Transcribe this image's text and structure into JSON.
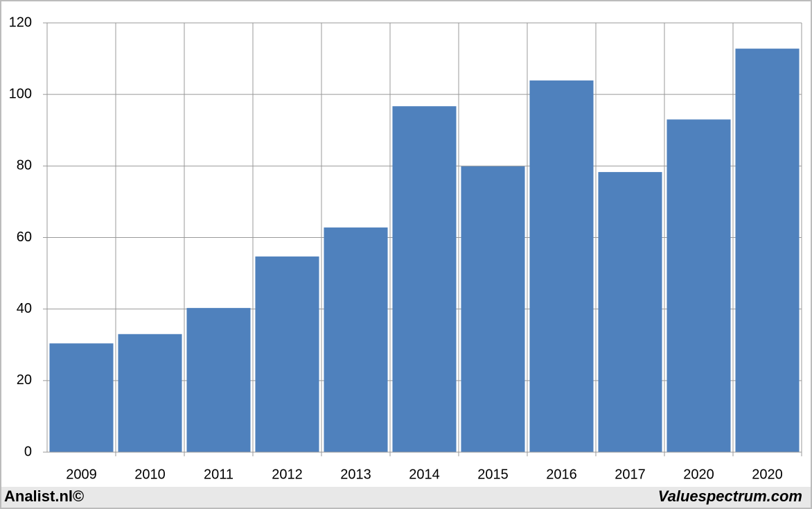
{
  "chart_data": {
    "type": "bar",
    "categories": [
      "2009",
      "2010",
      "2011",
      "2012",
      "2013",
      "2014",
      "2015",
      "2016",
      "2017",
      "2020",
      "2020"
    ],
    "values": [
      30.4,
      33,
      40.3,
      54.7,
      62.8,
      96.7,
      79.9,
      103.9,
      78.3,
      93,
      112.8
    ],
    "color": "#4f81bd",
    "ylim": [
      0,
      120
    ],
    "yticks": [
      0,
      20,
      40,
      60,
      80,
      100,
      120
    ],
    "grid": true
  },
  "footer": {
    "left": "Analist.nl©",
    "right": "Valuespectrum.com"
  }
}
